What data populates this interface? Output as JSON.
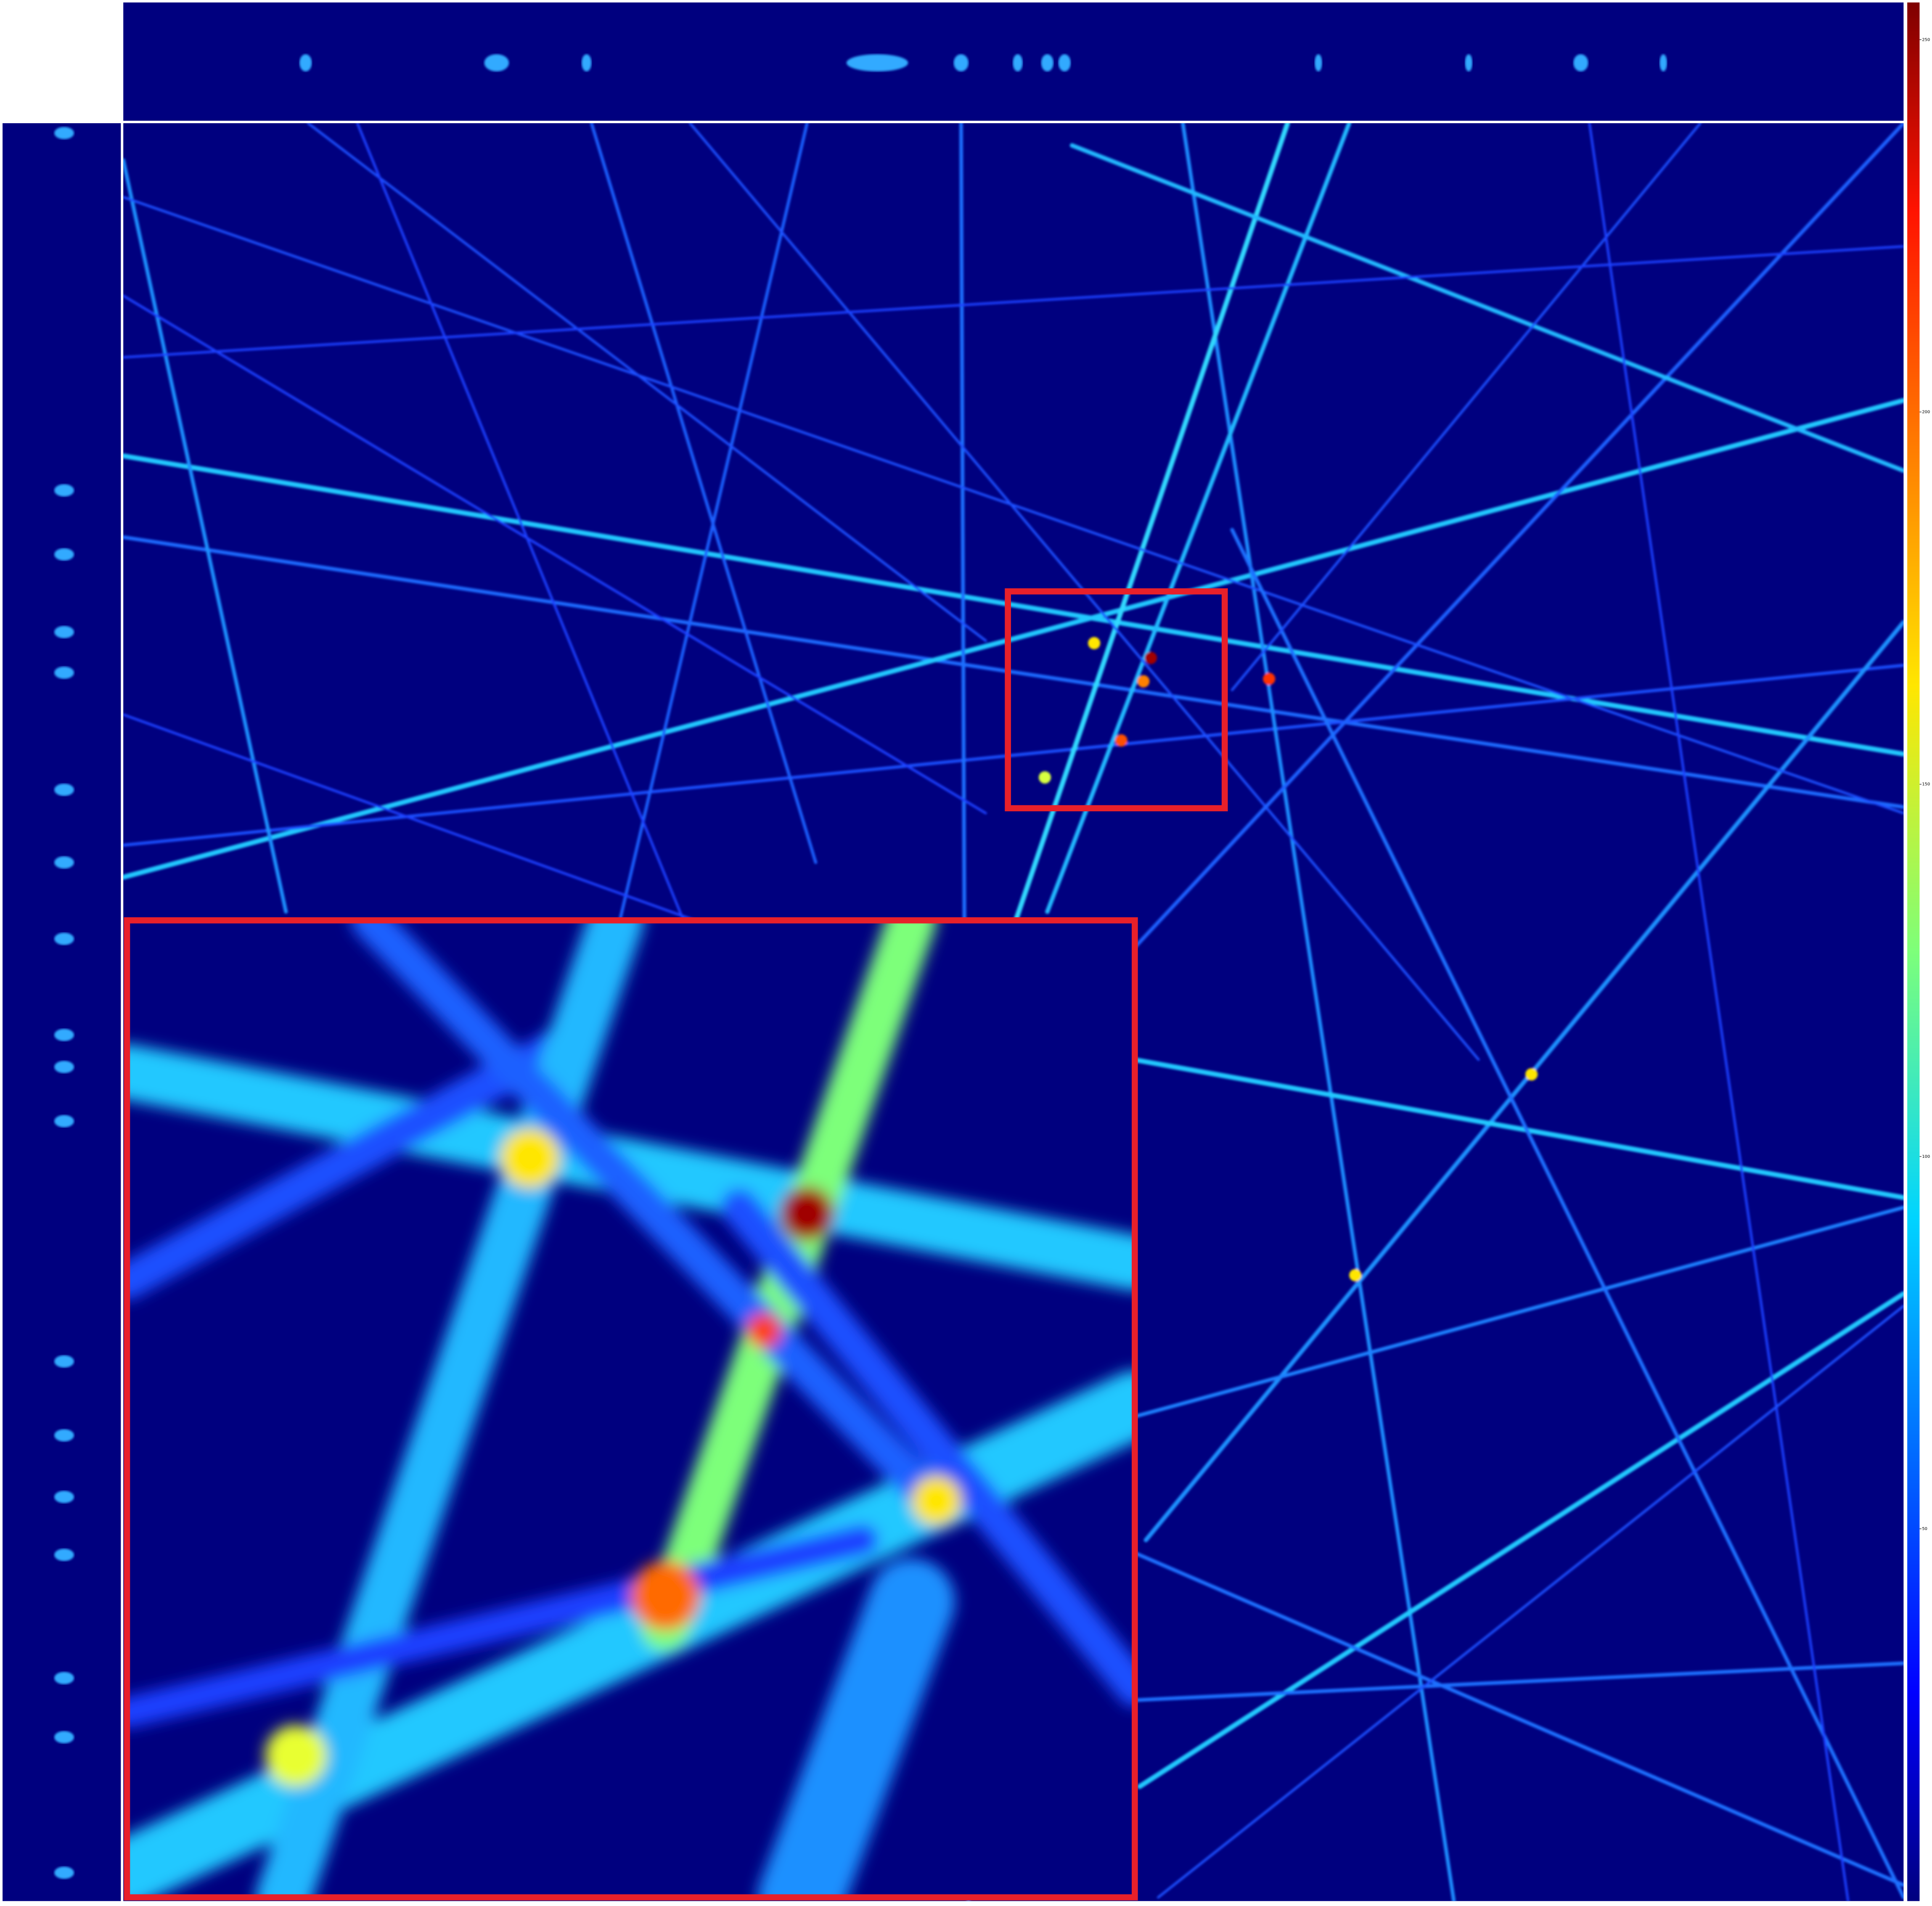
{
  "colorbar": {
    "lim": [
      0,
      255
    ],
    "ticks": [
      50,
      100,
      150,
      200,
      250
    ]
  }
}
